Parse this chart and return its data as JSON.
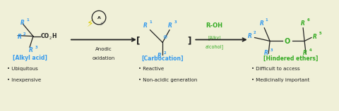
{
  "bg_color": "#f0f0d8",
  "blue": "#3399ee",
  "green": "#33aa22",
  "black": "#222222",
  "yellow_bolt": "#ddcc00",
  "gray_bolt": "#888888",
  "figsize": [
    4.8,
    1.58
  ],
  "dpi": 100,
  "xlim": [
    0,
    48
  ],
  "ylim": [
    0,
    15.8
  ],
  "alkyl_acid_label": "[Alkyl acid]",
  "carbocation_label": "[Carbocation]",
  "hindered_label": "[Hindered ethers]",
  "anodic_text1": "Anodic",
  "anodic_text2": "oxidation",
  "bullet1a": "• Ubiquitous",
  "bullet1b": "• Inexpensive",
  "bullet2a": "• Reactive",
  "bullet2b": "• Non-acidic generation",
  "bullet3a": "• Difficult to access",
  "bullet3b": "• Medicinally important"
}
